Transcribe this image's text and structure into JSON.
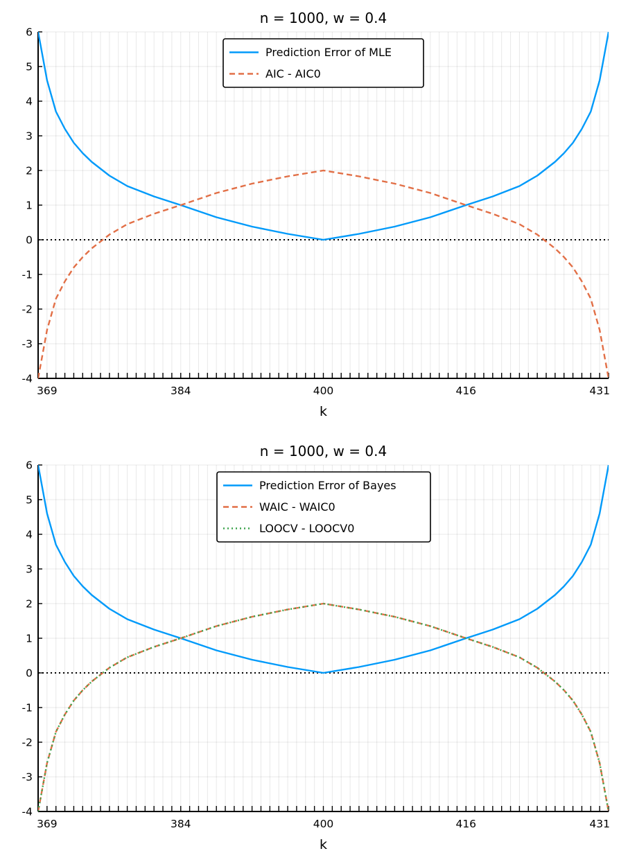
{
  "chart_data": [
    {
      "type": "line",
      "title": "n = 1000,  w = 0.4",
      "xlabel": "k",
      "ylabel": "",
      "xlim": [
        368,
        432
      ],
      "ylim": [
        -4,
        6
      ],
      "x_tick_labels": [
        "369",
        "384",
        "400",
        "416",
        "431"
      ],
      "y_tick_labels": [
        "-4",
        "-3",
        "-2",
        "-1",
        "0",
        "1",
        "2",
        "3",
        "4",
        "5",
        "6"
      ],
      "grid": true,
      "legend_position": "top-center",
      "reference_line": {
        "y": 0,
        "style": "dotted",
        "color": "#000000"
      },
      "series": [
        {
          "name": "Prediction Error of MLE",
          "style": "solid",
          "color": "#009AFA",
          "x": [
            368,
            369,
            370,
            371,
            372,
            373,
            374,
            376,
            378,
            381,
            384,
            388,
            392,
            396,
            400,
            404,
            408,
            412,
            416,
            419,
            422,
            424,
            426,
            427,
            428,
            429,
            430,
            431,
            432
          ],
          "y": [
            6.0,
            4.6,
            3.7,
            3.2,
            2.8,
            2.5,
            2.25,
            1.85,
            1.55,
            1.25,
            1.0,
            0.65,
            0.38,
            0.17,
            0.0,
            0.17,
            0.38,
            0.65,
            1.0,
            1.25,
            1.55,
            1.85,
            2.25,
            2.5,
            2.8,
            3.2,
            3.7,
            4.6,
            6.0
          ]
        },
        {
          "name": "AIC - AIC0",
          "style": "dashed",
          "color": "#E26F46",
          "x": [
            368,
            369,
            370,
            371,
            372,
            373,
            374,
            376,
            378,
            381,
            384,
            388,
            392,
            396,
            400,
            404,
            408,
            412,
            416,
            419,
            422,
            424,
            426,
            427,
            428,
            429,
            430,
            431,
            432
          ],
          "y": [
            -4.0,
            -2.6,
            -1.7,
            -1.2,
            -0.8,
            -0.5,
            -0.25,
            0.15,
            0.45,
            0.75,
            1.0,
            1.35,
            1.62,
            1.83,
            2.0,
            1.83,
            1.62,
            1.35,
            1.0,
            0.75,
            0.45,
            0.15,
            -0.25,
            -0.5,
            -0.8,
            -1.2,
            -1.7,
            -2.6,
            -4.0
          ]
        }
      ]
    },
    {
      "type": "line",
      "title": "n = 1000,  w = 0.4",
      "xlabel": "k",
      "ylabel": "",
      "xlim": [
        368,
        432
      ],
      "ylim": [
        -4,
        6
      ],
      "x_tick_labels": [
        "369",
        "384",
        "400",
        "416",
        "431"
      ],
      "y_tick_labels": [
        "-4",
        "-3",
        "-2",
        "-1",
        "0",
        "1",
        "2",
        "3",
        "4",
        "5",
        "6"
      ],
      "grid": true,
      "legend_position": "top-center",
      "reference_line": {
        "y": 0,
        "style": "dotted",
        "color": "#000000"
      },
      "series": [
        {
          "name": "Prediction Error of Bayes",
          "style": "solid",
          "color": "#009AFA",
          "x": [
            368,
            369,
            370,
            371,
            372,
            373,
            374,
            376,
            378,
            381,
            384,
            388,
            392,
            396,
            400,
            404,
            408,
            412,
            416,
            419,
            422,
            424,
            426,
            427,
            428,
            429,
            430,
            431,
            432
          ],
          "y": [
            6.0,
            4.6,
            3.7,
            3.2,
            2.8,
            2.5,
            2.25,
            1.85,
            1.55,
            1.25,
            1.0,
            0.65,
            0.38,
            0.17,
            0.0,
            0.17,
            0.38,
            0.65,
            1.0,
            1.25,
            1.55,
            1.85,
            2.25,
            2.5,
            2.8,
            3.2,
            3.7,
            4.6,
            6.0
          ]
        },
        {
          "name": "WAIC - WAIC0",
          "style": "dashed",
          "color": "#E26F46",
          "x": [
            368,
            369,
            370,
            371,
            372,
            373,
            374,
            376,
            378,
            381,
            384,
            388,
            392,
            396,
            400,
            404,
            408,
            412,
            416,
            419,
            422,
            424,
            426,
            427,
            428,
            429,
            430,
            431,
            432
          ],
          "y": [
            -4.0,
            -2.6,
            -1.7,
            -1.2,
            -0.8,
            -0.5,
            -0.25,
            0.15,
            0.45,
            0.75,
            1.0,
            1.35,
            1.62,
            1.83,
            2.0,
            1.83,
            1.62,
            1.35,
            1.0,
            0.75,
            0.45,
            0.15,
            -0.25,
            -0.5,
            -0.8,
            -1.2,
            -1.7,
            -2.6,
            -4.0
          ]
        },
        {
          "name": "LOOCV - LOOCV0",
          "style": "dotted",
          "color": "#3DA44D",
          "x": [
            368,
            369,
            370,
            371,
            372,
            373,
            374,
            376,
            378,
            381,
            384,
            388,
            392,
            396,
            400,
            404,
            408,
            412,
            416,
            419,
            422,
            424,
            426,
            427,
            428,
            429,
            430,
            431,
            432
          ],
          "y": [
            -4.0,
            -2.6,
            -1.7,
            -1.2,
            -0.8,
            -0.5,
            -0.25,
            0.15,
            0.45,
            0.75,
            1.0,
            1.35,
            1.62,
            1.83,
            2.0,
            1.83,
            1.62,
            1.35,
            1.0,
            0.75,
            0.45,
            0.15,
            -0.25,
            -0.5,
            -0.8,
            -1.2,
            -1.7,
            -2.6,
            -4.0
          ]
        }
      ]
    }
  ]
}
